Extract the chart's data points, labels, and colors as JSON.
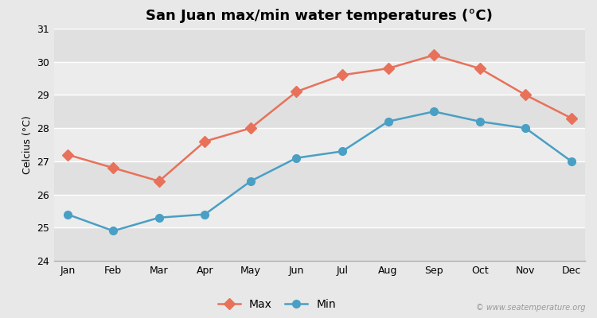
{
  "title": "San Juan max/min water temperatures (°C)",
  "ylabel": "Celcius (°C)",
  "months": [
    "Jan",
    "Feb",
    "Mar",
    "Apr",
    "May",
    "Jun",
    "Jul",
    "Aug",
    "Sep",
    "Oct",
    "Nov",
    "Dec"
  ],
  "max_temps": [
    27.2,
    26.8,
    26.4,
    27.6,
    28.0,
    29.1,
    29.6,
    29.8,
    30.2,
    29.8,
    29.0,
    28.3
  ],
  "min_temps": [
    25.4,
    24.9,
    25.3,
    25.4,
    26.4,
    27.1,
    27.3,
    28.2,
    28.5,
    28.2,
    28.0,
    27.0
  ],
  "max_color": "#e8715a",
  "min_color": "#4a9fc4",
  "ylim": [
    24,
    31
  ],
  "yticks": [
    24,
    25,
    26,
    27,
    28,
    29,
    30,
    31
  ],
  "bg_color": "#e8e8e8",
  "band_light": "#ececec",
  "band_dark": "#e0e0e0",
  "grid_color": "#ffffff",
  "watermark": "© www.seatemperature.org",
  "legend_max": "Max",
  "legend_min": "Min",
  "title_fontsize": 13,
  "label_fontsize": 9,
  "tick_fontsize": 9,
  "legend_fontsize": 10
}
